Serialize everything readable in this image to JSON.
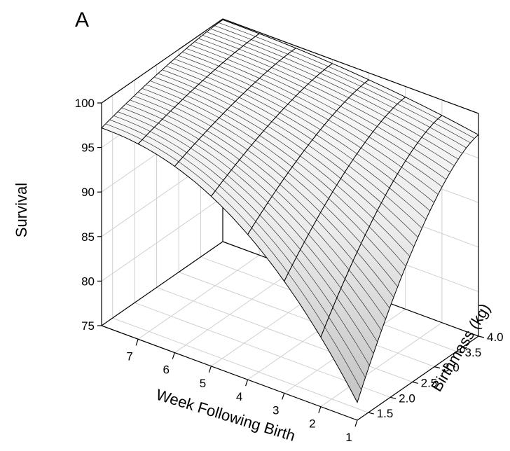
{
  "panel_label": "A",
  "chart_data": {
    "type": "surface",
    "zlabel": "Survival",
    "xlabel": "Week Following Birth",
    "ylabel": "Birthmass (kg)",
    "zlim": [
      75,
      100
    ],
    "xlim": [
      1,
      8
    ],
    "ylim": [
      1.25,
      4.0
    ],
    "z_ticks": [
      "75",
      "80",
      "85",
      "90",
      "95",
      "100"
    ],
    "x_ticks": [
      "7",
      "6",
      "5",
      "4",
      "3",
      "2",
      "1"
    ],
    "y_ticks": [
      "1.5",
      "2.0",
      "2.5",
      "3.0",
      "3.5",
      "4.0"
    ],
    "grid": true,
    "corner_values": {
      "week_8_mass_1.25": 97.2,
      "week_8_mass_4.0": 99.9,
      "week_1_mass_4.0": 97.6,
      "week_1_mass_1.25": 77.0
    }
  }
}
